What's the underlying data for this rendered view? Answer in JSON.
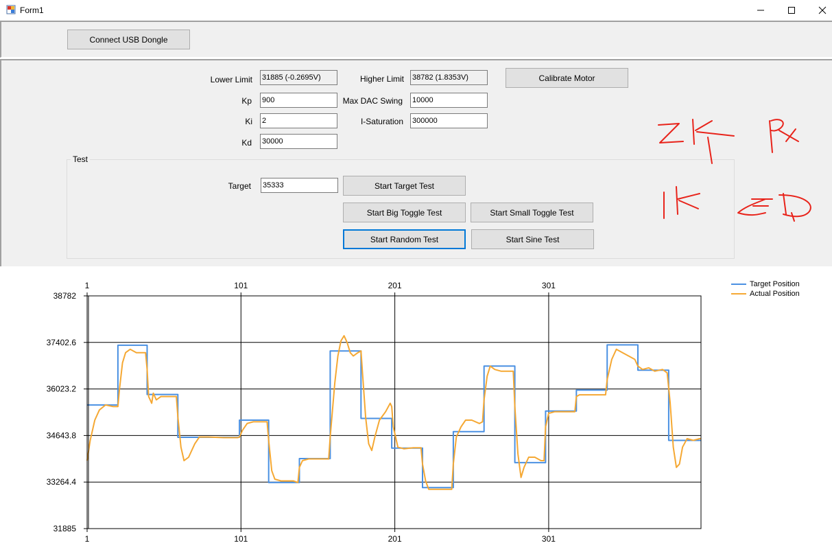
{
  "window": {
    "title": "Form1",
    "icon": "winforms-icon"
  },
  "top": {
    "connect_label": "Connect USB Dongle"
  },
  "settings": {
    "lower_limit_label": "Lower Limit",
    "lower_limit_value": "31885 (-0.2695V)",
    "higher_limit_label": "Higher Limit",
    "higher_limit_value": "38782 (1.8353V)",
    "calibrate_label": "Calibrate Motor",
    "kp_label": "Kp",
    "kp_value": "900",
    "max_dac_label": "Max DAC Swing",
    "max_dac_value": "10000",
    "ki_label": "Ki",
    "ki_value": "2",
    "isat_label": "I-Saturation",
    "isat_value": "300000",
    "kd_label": "Kd",
    "kd_value": "30000"
  },
  "test": {
    "group_label": "Test",
    "target_label": "Target",
    "target_value": "35333",
    "start_target_label": "Start Target Test",
    "big_toggle_label": "Start Big Toggle Test",
    "small_toggle_label": "Start Small Toggle Test",
    "random_label": "Start Random Test",
    "sine_label": "Start Sine Test"
  },
  "chart_data": {
    "type": "line",
    "xlim": [
      1,
      400
    ],
    "ylim": [
      31885,
      38782
    ],
    "x_ticks": [
      1,
      101,
      201,
      301
    ],
    "x_tick_labels": [
      "1",
      "101",
      "201",
      "301"
    ],
    "y_ticks": [
      31885,
      33264.4,
      34643.8,
      36023.2,
      37402.6,
      38782
    ],
    "y_tick_labels": [
      "31885",
      "33264.4",
      "34643.8",
      "36023.2",
      "37402.6",
      "38782"
    ],
    "grid": true,
    "legend_position": "top-right",
    "colors": {
      "target": "#4a90e2",
      "actual": "#f5a833"
    },
    "series": [
      {
        "name": "Target Position",
        "color": "#4a90e2",
        "points": [
          [
            1,
            35550
          ],
          [
            21,
            35550
          ],
          [
            21,
            37320
          ],
          [
            40,
            37320
          ],
          [
            40,
            35860
          ],
          [
            60,
            35860
          ],
          [
            60,
            34590
          ],
          [
            100,
            34590
          ],
          [
            100,
            35100
          ],
          [
            119,
            35100
          ],
          [
            119,
            33250
          ],
          [
            139,
            33250
          ],
          [
            139,
            33960
          ],
          [
            159,
            33960
          ],
          [
            159,
            37150
          ],
          [
            179,
            37150
          ],
          [
            179,
            35150
          ],
          [
            199,
            35150
          ],
          [
            199,
            34270
          ],
          [
            219,
            34270
          ],
          [
            219,
            33100
          ],
          [
            239,
            33100
          ],
          [
            239,
            34760
          ],
          [
            259,
            34760
          ],
          [
            259,
            36700
          ],
          [
            279,
            36700
          ],
          [
            279,
            33840
          ],
          [
            299,
            33840
          ],
          [
            299,
            35370
          ],
          [
            319,
            35370
          ],
          [
            319,
            35990
          ],
          [
            339,
            35990
          ],
          [
            339,
            37330
          ],
          [
            359,
            37330
          ],
          [
            359,
            36580
          ],
          [
            379,
            36580
          ],
          [
            379,
            34500
          ],
          [
            400,
            34500
          ]
        ]
      },
      {
        "name": "Actual Position",
        "color": "#f5a833",
        "points": [
          [
            1,
            33900
          ],
          [
            3,
            34500
          ],
          [
            6,
            35100
          ],
          [
            9,
            35400
          ],
          [
            13,
            35550
          ],
          [
            18,
            35500
          ],
          [
            21,
            35500
          ],
          [
            22,
            36000
          ],
          [
            24,
            36800
          ],
          [
            26,
            37100
          ],
          [
            29,
            37200
          ],
          [
            33,
            37100
          ],
          [
            37,
            37100
          ],
          [
            39,
            37100
          ],
          [
            40,
            36600
          ],
          [
            41,
            35800
          ],
          [
            43,
            35600
          ],
          [
            44,
            35900
          ],
          [
            46,
            35700
          ],
          [
            49,
            35800
          ],
          [
            55,
            35800
          ],
          [
            59,
            35800
          ],
          [
            60,
            35200
          ],
          [
            62,
            34300
          ],
          [
            64,
            33900
          ],
          [
            67,
            34000
          ],
          [
            71,
            34400
          ],
          [
            74,
            34600
          ],
          [
            80,
            34600
          ],
          [
            90,
            34580
          ],
          [
            99,
            34580
          ],
          [
            100,
            34600
          ],
          [
            102,
            34800
          ],
          [
            105,
            35000
          ],
          [
            109,
            35050
          ],
          [
            118,
            35050
          ],
          [
            119,
            34500
          ],
          [
            121,
            33600
          ],
          [
            123,
            33350
          ],
          [
            127,
            33300
          ],
          [
            135,
            33300
          ],
          [
            138,
            33250
          ],
          [
            139,
            33700
          ],
          [
            141,
            33900
          ],
          [
            145,
            33950
          ],
          [
            158,
            33950
          ],
          [
            159,
            34600
          ],
          [
            162,
            36200
          ],
          [
            164,
            37000
          ],
          [
            166,
            37450
          ],
          [
            168,
            37600
          ],
          [
            170,
            37400
          ],
          [
            172,
            37100
          ],
          [
            174,
            37000
          ],
          [
            177,
            37100
          ],
          [
            179,
            37150
          ],
          [
            180,
            36500
          ],
          [
            182,
            35200
          ],
          [
            184,
            34400
          ],
          [
            186,
            34200
          ],
          [
            188,
            34600
          ],
          [
            191,
            35100
          ],
          [
            195,
            35350
          ],
          [
            198,
            35600
          ],
          [
            199,
            35500
          ],
          [
            200,
            34900
          ],
          [
            203,
            34300
          ],
          [
            207,
            34250
          ],
          [
            213,
            34280
          ],
          [
            218,
            34280
          ],
          [
            219,
            33800
          ],
          [
            221,
            33300
          ],
          [
            223,
            33050
          ],
          [
            229,
            33050
          ],
          [
            238,
            33050
          ],
          [
            239,
            33800
          ],
          [
            241,
            34600
          ],
          [
            244,
            34900
          ],
          [
            247,
            35100
          ],
          [
            251,
            35100
          ],
          [
            256,
            35000
          ],
          [
            258,
            35050
          ],
          [
            259,
            35700
          ],
          [
            261,
            36400
          ],
          [
            263,
            36700
          ],
          [
            266,
            36600
          ],
          [
            270,
            36550
          ],
          [
            278,
            36550
          ],
          [
            279,
            35500
          ],
          [
            281,
            34100
          ],
          [
            283,
            33400
          ],
          [
            285,
            33700
          ],
          [
            288,
            34000
          ],
          [
            292,
            34000
          ],
          [
            296,
            33900
          ],
          [
            298,
            33900
          ],
          [
            299,
            34900
          ],
          [
            301,
            35300
          ],
          [
            305,
            35350
          ],
          [
            318,
            35350
          ],
          [
            319,
            35800
          ],
          [
            321,
            35850
          ],
          [
            325,
            35850
          ],
          [
            338,
            35850
          ],
          [
            339,
            36300
          ],
          [
            342,
            36900
          ],
          [
            345,
            37200
          ],
          [
            349,
            37100
          ],
          [
            353,
            37000
          ],
          [
            357,
            36900
          ],
          [
            359,
            36700
          ],
          [
            362,
            36600
          ],
          [
            366,
            36650
          ],
          [
            370,
            36550
          ],
          [
            375,
            36600
          ],
          [
            378,
            36500
          ],
          [
            380,
            35600
          ],
          [
            382,
            34300
          ],
          [
            384,
            33700
          ],
          [
            386,
            33800
          ],
          [
            388,
            34300
          ],
          [
            391,
            34550
          ],
          [
            395,
            34500
          ],
          [
            399,
            34550
          ],
          [
            400,
            34550
          ]
        ]
      }
    ]
  }
}
